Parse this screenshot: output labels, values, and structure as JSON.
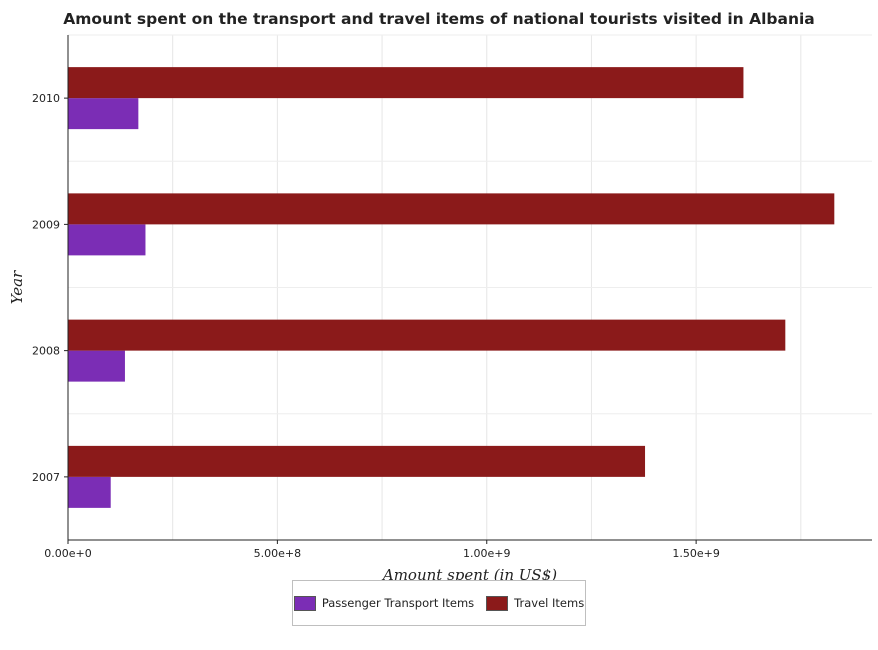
{
  "chart_data": {
    "type": "bar",
    "orientation": "horizontal",
    "title": "Amount spent on the transport and travel items of national tourists visited in Albania",
    "xlabel": "Amount spent (in US$)",
    "ylabel": "Year",
    "categories": [
      "2007",
      "2008",
      "2009",
      "2010"
    ],
    "series": [
      {
        "name": "Passenger Transport Items",
        "color": "#7b2db5",
        "values": [
          102000000,
          136000000,
          185000000,
          168000000
        ]
      },
      {
        "name": "Travel Items",
        "color": "#8b1a1a",
        "values": [
          1378000000,
          1713000000,
          1830000000,
          1613000000
        ]
      }
    ],
    "xlim": [
      0,
      1920000000
    ],
    "xticks": [
      {
        "value": 0,
        "label": "0.00e+0"
      },
      {
        "value": 500000000,
        "label": "5.00e+8"
      },
      {
        "value": 1000000000,
        "label": "1.00e+9"
      },
      {
        "value": 1500000000,
        "label": "1.50e+9"
      }
    ],
    "grid": true,
    "legend_position": "bottom-center"
  }
}
